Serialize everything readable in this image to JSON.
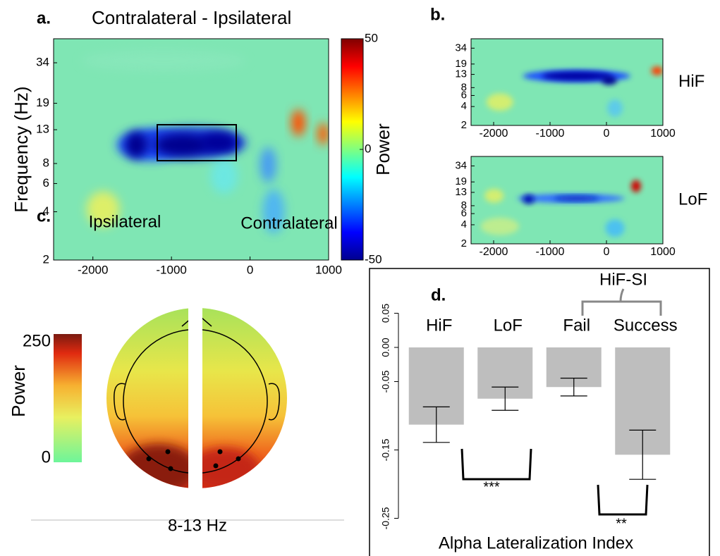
{
  "chart_data": [
    {
      "type": "heatmap",
      "panel": "a.",
      "title": "Contralateral - Ipsilateral",
      "ylabel": "Frequency (Hz)",
      "xlim": [
        -2500,
        1000
      ],
      "xticks": [
        -2000,
        -1000,
        0,
        1000
      ],
      "ylim": [
        2,
        48
      ],
      "yticks": [
        2,
        4,
        6,
        8,
        13,
        19,
        34
      ],
      "log_y": true,
      "colorbar": {
        "label": "Power",
        "lim": [
          -50,
          50
        ],
        "ticks": [
          -50,
          0,
          50
        ]
      }
    },
    {
      "type": "heatmap",
      "panel": "b.",
      "label": "HiF",
      "xlim": [
        -2400,
        1000
      ],
      "xticks": [
        -2000,
        -1000,
        0,
        1000
      ],
      "ylim": [
        2,
        48
      ],
      "yticks": [
        2,
        4,
        6,
        8,
        13,
        19,
        34
      ],
      "log_y": true
    },
    {
      "type": "heatmap",
      "label": "LoF",
      "xlim": [
        -2400,
        1000
      ],
      "xticks": [
        -2000,
        -1000,
        0,
        1000
      ],
      "ylim": [
        2,
        48
      ],
      "yticks": [
        2,
        4,
        6,
        8,
        13,
        19,
        34
      ],
      "log_y": true
    },
    {
      "type": "topomap",
      "panel": "c.",
      "left_label": "Ipsilateral",
      "right_label": "Contralateral",
      "caption": "8-13 Hz",
      "colorbar": {
        "label": "Power",
        "lim": [
          0,
          250
        ],
        "ticks": [
          0,
          250
        ]
      }
    },
    {
      "type": "bar",
      "panel": "d.",
      "categories": [
        "HiF",
        "LoF",
        "Fail",
        "Success"
      ],
      "group_label": "HiF-SI",
      "values": [
        -0.113,
        -0.075,
        -0.058,
        -0.157
      ],
      "errors": [
        0.026,
        0.017,
        0.013,
        0.036
      ],
      "color": "#bebebe",
      "ylim": [
        -0.28,
        0.05
      ],
      "yticks": [
        0.05,
        {
          "value": 0,
          "label": "0.00"
        },
        -0.05,
        -0.15,
        -0.25
      ],
      "xlabel": "Alpha Lateralization Index",
      "annotations": [
        "***",
        "**"
      ]
    }
  ]
}
